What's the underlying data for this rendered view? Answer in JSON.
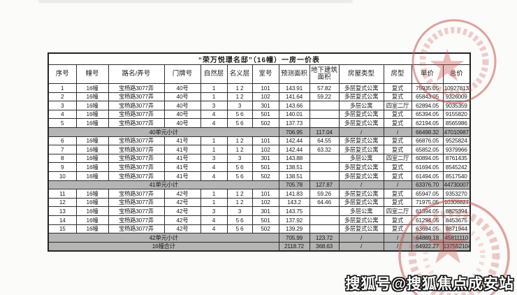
{
  "page": {
    "watermark": "搜狐号@搜狐焦点成安站"
  },
  "stamp": {
    "color": "#c4504b",
    "top_seal": "official-round-seal-with-star",
    "bottom_seal": "official-round-seal-with-star"
  },
  "table": {
    "title": "“荣万悦璟名邸”（16幢）一房一价表",
    "headers": [
      "序号",
      "幢号",
      "路名/弄号",
      "门牌号",
      "自然层",
      "名义层",
      "室号",
      "预测面积",
      "地下建筑面积",
      "房屋类型",
      "房型",
      "单价",
      "总价"
    ],
    "rows": [
      {
        "kind": "data",
        "cells": [
          "1",
          "16幢",
          "宝杨路3077弄",
          "40号",
          "1",
          "1 2",
          "101",
          "143.91",
          "57.82",
          "多层复式公寓",
          "复式",
          "75935.05",
          "10927813"
        ]
      },
      {
        "kind": "data",
        "cells": [
          "2",
          "16幢",
          "宝杨路3077弄",
          "40号",
          "1",
          "1 2",
          "102",
          "141.64",
          "59.22",
          "多层复式公寓",
          "复式",
          "65843.05",
          "9326009"
        ]
      },
      {
        "kind": "data",
        "cells": [
          "3",
          "16幢",
          "宝杨路3077弄",
          "40号",
          "3",
          "3",
          "301",
          "143.66",
          "",
          "多层公寓",
          "四室二厅",
          "62894.05",
          "9035359"
        ]
      },
      {
        "kind": "data",
        "cells": [
          "4",
          "16幢",
          "宝杨路3077弄",
          "40号",
          "4",
          "5 6",
          "501",
          "140.01",
          "",
          "多层复式公寓",
          "复式",
          "65394.05",
          "9155820"
        ]
      },
      {
        "kind": "data",
        "cells": [
          "5",
          "16幢",
          "宝杨路3077弄",
          "40号",
          "4",
          "5 6",
          "502",
          "137.73",
          "",
          "多层复式公寓",
          "复式",
          "62194.05",
          "8565986"
        ]
      },
      {
        "kind": "subtotal",
        "label": "40单元小计",
        "cells": [
          "706.95",
          "117.04",
          "/",
          "/",
          "66498.32",
          "47010987"
        ]
      },
      {
        "kind": "data",
        "cells": [
          "6",
          "16幢",
          "宝杨路3077弄",
          "41号",
          "1",
          "1 2",
          "101",
          "142.44",
          "64.55",
          "多层复式公寓",
          "复式",
          "66876.05",
          "9525824"
        ]
      },
      {
        "kind": "data",
        "cells": [
          "7",
          "16幢",
          "宝杨路3077弄",
          "41号",
          "1",
          "1 2",
          "102",
          "142.44",
          "63.32",
          "多层复式公寓",
          "复式",
          "65852.05",
          "9379966"
        ]
      },
      {
        "kind": "data",
        "cells": [
          "8",
          "16幢",
          "宝杨路3077弄",
          "41号",
          "3",
          "3",
          "301",
          "143.88",
          "",
          "多层公寓",
          "四室二厅",
          "60894.05",
          "8761435"
        ]
      },
      {
        "kind": "data",
        "cells": [
          "9",
          "16幢",
          "宝杨路3077弄",
          "41号",
          "4",
          "5 6",
          "501",
          "138.51",
          "",
          "多层复式公寓",
          "复式",
          "61694.05",
          "8545242"
        ]
      },
      {
        "kind": "data",
        "cells": [
          "10",
          "16幢",
          "宝杨路3077弄",
          "41号",
          "4",
          "5 6",
          "502",
          "138.51",
          "",
          "多层复式公寓",
          "复式",
          "61494.05",
          "8517540"
        ]
      },
      {
        "kind": "subtotal",
        "label": "41单元小计",
        "cells": [
          "705.78",
          "127.87",
          "/",
          "/",
          "63376.70",
          "44730007"
        ]
      },
      {
        "kind": "data",
        "cells": [
          "11",
          "16幢",
          "宝杨路3077弄",
          "42号",
          "1",
          "1 2",
          "101",
          "141.83",
          "59.26",
          "多层复式公寓",
          "复式",
          "65947.05",
          "9353270"
        ]
      },
      {
        "kind": "data",
        "cells": [
          "12",
          "16幢",
          "宝杨路3077弄",
          "42号",
          "1",
          "1 2",
          "102",
          "143.2",
          "64.46",
          "多层复式公寓",
          "复式",
          "71975.05",
          "10306827"
        ]
      },
      {
        "kind": "data",
        "cells": [
          "13",
          "16幢",
          "宝杨路3077弄",
          "42号",
          "3",
          "3",
          "301",
          "143.75",
          "",
          "多层公寓",
          "四室二厅",
          "61394.05",
          "8825394"
        ]
      },
      {
        "kind": "data",
        "cells": [
          "14",
          "16幢",
          "宝杨路3077弄",
          "42号",
          "4",
          "5 6",
          "501",
          "137.92",
          "",
          "多层复式公寓",
          "复式",
          "61294.05",
          "8453675"
        ]
      },
      {
        "kind": "data",
        "cells": [
          "15",
          "16幢",
          "宝杨路3077弄",
          "42号",
          "4",
          "5 6",
          "502",
          "139.29",
          "",
          "多层复式公寓",
          "复式",
          "63694.05",
          "8871944"
        ]
      },
      {
        "kind": "subtotal",
        "label": "42单元小计",
        "cells": [
          "705.99",
          "123.72",
          "/",
          "/",
          "64889.18",
          "45811110"
        ]
      },
      {
        "kind": "total",
        "label": "16幢合计",
        "cells": [
          "2118.72",
          "368.63",
          "/",
          "/",
          "64922.27",
          "137552104"
        ]
      }
    ]
  }
}
